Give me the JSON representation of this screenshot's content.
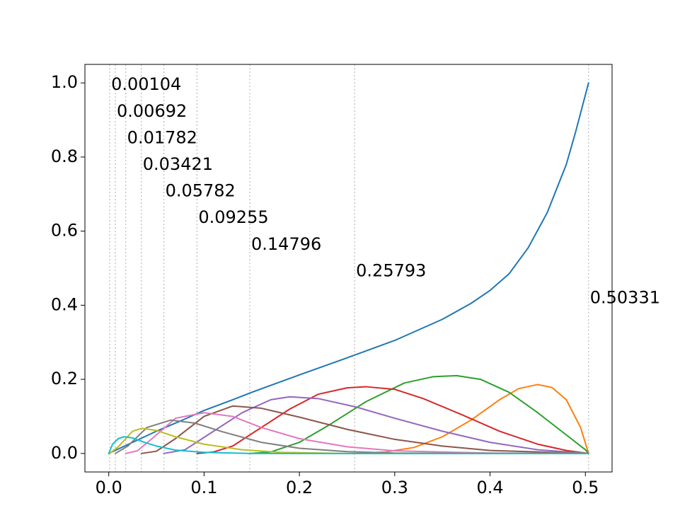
{
  "chart_data": {
    "type": "line",
    "title": "",
    "xlabel": "",
    "ylabel": "",
    "xlim": [
      -0.025,
      0.528
    ],
    "ylim": [
      -0.05,
      1.05
    ],
    "grid": false,
    "x_ticks": [
      {
        "value": 0.0,
        "label": "0.0"
      },
      {
        "value": 0.1,
        "label": "0.1"
      },
      {
        "value": 0.2,
        "label": "0.2"
      },
      {
        "value": 0.3,
        "label": "0.3"
      },
      {
        "value": 0.4,
        "label": "0.4"
      },
      {
        "value": 0.5,
        "label": "0.5"
      }
    ],
    "y_ticks": [
      {
        "value": 0.0,
        "label": "0.0"
      },
      {
        "value": 0.2,
        "label": "0.2"
      },
      {
        "value": 0.4,
        "label": "0.4"
      },
      {
        "value": 0.6,
        "label": "0.6"
      },
      {
        "value": 0.8,
        "label": "0.8"
      },
      {
        "value": 1.0,
        "label": "1.0"
      }
    ],
    "vlines": [
      {
        "x": 0.00104,
        "label": "0.00104",
        "label_y": 1.0
      },
      {
        "x": 0.00692,
        "label": "0.00692",
        "label_y": 0.928
      },
      {
        "x": 0.01782,
        "label": "0.01782",
        "label_y": 0.856
      },
      {
        "x": 0.03421,
        "label": "0.03421",
        "label_y": 0.785
      },
      {
        "x": 0.05782,
        "label": "0.05782",
        "label_y": 0.713
      },
      {
        "x": 0.09255,
        "label": "0.09255",
        "label_y": 0.641
      },
      {
        "x": 0.14796,
        "label": "0.14796",
        "label_y": 0.569
      },
      {
        "x": 0.25793,
        "label": "0.25793",
        "label_y": 0.497
      },
      {
        "x": 0.50331,
        "label": "0.50331",
        "label_y": 0.425
      }
    ],
    "series": [
      {
        "color": "#1f77b4",
        "points": [
          [
            0,
            0
          ],
          [
            0.01,
            0.012
          ],
          [
            0.03,
            0.036
          ],
          [
            0.05,
            0.06
          ],
          [
            0.08,
            0.093
          ],
          [
            0.1,
            0.116
          ],
          [
            0.13,
            0.145
          ],
          [
            0.15,
            0.165
          ],
          [
            0.2,
            0.212
          ],
          [
            0.25,
            0.258
          ],
          [
            0.3,
            0.305
          ],
          [
            0.35,
            0.362
          ],
          [
            0.38,
            0.405
          ],
          [
            0.4,
            0.44
          ],
          [
            0.42,
            0.485
          ],
          [
            0.44,
            0.555
          ],
          [
            0.46,
            0.65
          ],
          [
            0.48,
            0.78
          ],
          [
            0.49,
            0.87
          ],
          [
            0.50331,
            1.0
          ]
        ]
      },
      {
        "color": "#ff7f0e",
        "points": [
          [
            0.25793,
            0
          ],
          [
            0.29,
            0.004
          ],
          [
            0.32,
            0.016
          ],
          [
            0.35,
            0.045
          ],
          [
            0.38,
            0.09
          ],
          [
            0.41,
            0.145
          ],
          [
            0.43,
            0.175
          ],
          [
            0.45,
            0.186
          ],
          [
            0.465,
            0.178
          ],
          [
            0.48,
            0.145
          ],
          [
            0.495,
            0.07
          ],
          [
            0.50331,
            0
          ]
        ]
      },
      {
        "color": "#2ca02c",
        "points": [
          [
            0.14796,
            0
          ],
          [
            0.17,
            0.004
          ],
          [
            0.2,
            0.03
          ],
          [
            0.23,
            0.075
          ],
          [
            0.27,
            0.14
          ],
          [
            0.31,
            0.19
          ],
          [
            0.34,
            0.207
          ],
          [
            0.365,
            0.21
          ],
          [
            0.39,
            0.2
          ],
          [
            0.42,
            0.165
          ],
          [
            0.45,
            0.11
          ],
          [
            0.48,
            0.05
          ],
          [
            0.5,
            0.01
          ],
          [
            0.50331,
            0
          ]
        ]
      },
      {
        "color": "#d62728",
        "points": [
          [
            0.09255,
            0
          ],
          [
            0.11,
            0.004
          ],
          [
            0.13,
            0.02
          ],
          [
            0.16,
            0.07
          ],
          [
            0.19,
            0.12
          ],
          [
            0.22,
            0.16
          ],
          [
            0.25,
            0.177
          ],
          [
            0.27,
            0.18
          ],
          [
            0.3,
            0.173
          ],
          [
            0.33,
            0.148
          ],
          [
            0.37,
            0.105
          ],
          [
            0.41,
            0.06
          ],
          [
            0.45,
            0.025
          ],
          [
            0.48,
            0.008
          ],
          [
            0.50331,
            0
          ]
        ]
      },
      {
        "color": "#9467bd",
        "points": [
          [
            0.05782,
            0
          ],
          [
            0.08,
            0.01
          ],
          [
            0.11,
            0.06
          ],
          [
            0.14,
            0.11
          ],
          [
            0.17,
            0.145
          ],
          [
            0.19,
            0.153
          ],
          [
            0.22,
            0.148
          ],
          [
            0.26,
            0.125
          ],
          [
            0.3,
            0.095
          ],
          [
            0.35,
            0.06
          ],
          [
            0.4,
            0.03
          ],
          [
            0.45,
            0.01
          ],
          [
            0.50331,
            0
          ]
        ]
      },
      {
        "color": "#8c564b",
        "points": [
          [
            0.03421,
            0
          ],
          [
            0.05,
            0.006
          ],
          [
            0.07,
            0.04
          ],
          [
            0.1,
            0.1
          ],
          [
            0.13,
            0.128
          ],
          [
            0.16,
            0.122
          ],
          [
            0.2,
            0.098
          ],
          [
            0.25,
            0.065
          ],
          [
            0.3,
            0.038
          ],
          [
            0.35,
            0.02
          ],
          [
            0.4,
            0.008
          ],
          [
            0.50331,
            0
          ]
        ]
      },
      {
        "color": "#e377c2",
        "points": [
          [
            0.01782,
            0
          ],
          [
            0.03,
            0.007
          ],
          [
            0.05,
            0.05
          ],
          [
            0.07,
            0.095
          ],
          [
            0.1,
            0.11
          ],
          [
            0.13,
            0.1
          ],
          [
            0.16,
            0.07
          ],
          [
            0.2,
            0.04
          ],
          [
            0.25,
            0.018
          ],
          [
            0.3,
            0.007
          ],
          [
            0.4,
            0.001
          ],
          [
            0.50331,
            0
          ]
        ]
      },
      {
        "color": "#7f7f7f",
        "points": [
          [
            0.00692,
            0
          ],
          [
            0.02,
            0.02
          ],
          [
            0.04,
            0.07
          ],
          [
            0.065,
            0.09
          ],
          [
            0.09,
            0.082
          ],
          [
            0.12,
            0.058
          ],
          [
            0.16,
            0.03
          ],
          [
            0.2,
            0.014
          ],
          [
            0.25,
            0.005
          ],
          [
            0.3,
            0.001
          ],
          [
            0.50331,
            0
          ]
        ]
      },
      {
        "color": "#bcbd22",
        "points": [
          [
            0.00104,
            0
          ],
          [
            0.01,
            0.018
          ],
          [
            0.025,
            0.06
          ],
          [
            0.035,
            0.068
          ],
          [
            0.05,
            0.062
          ],
          [
            0.07,
            0.045
          ],
          [
            0.1,
            0.025
          ],
          [
            0.14,
            0.01
          ],
          [
            0.18,
            0.003
          ],
          [
            0.25,
            0
          ],
          [
            0.50331,
            0
          ]
        ]
      },
      {
        "color": "#17becf",
        "points": [
          [
            0,
            0
          ],
          [
            0.004,
            0.025
          ],
          [
            0.01,
            0.04
          ],
          [
            0.016,
            0.045
          ],
          [
            0.025,
            0.042
          ],
          [
            0.035,
            0.032
          ],
          [
            0.05,
            0.02
          ],
          [
            0.07,
            0.009
          ],
          [
            0.1,
            0.003
          ],
          [
            0.15,
            0
          ],
          [
            0.50331,
            0
          ]
        ]
      }
    ]
  }
}
